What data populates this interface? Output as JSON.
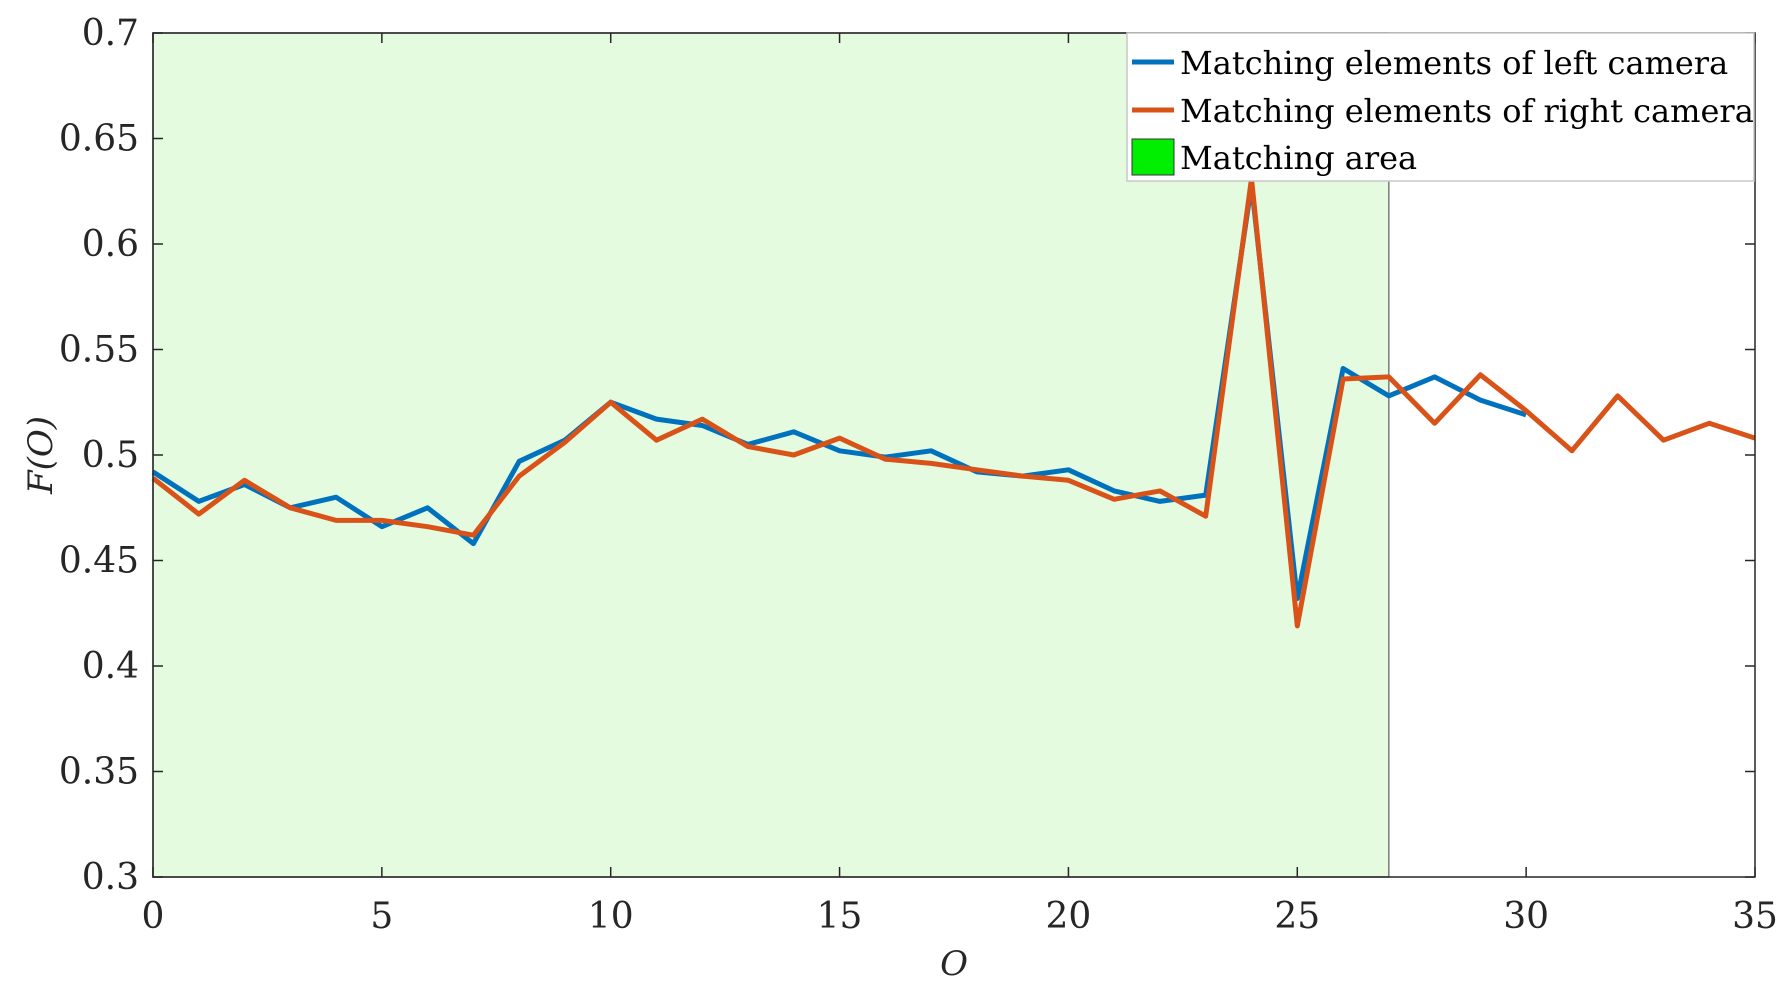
{
  "chart_data": {
    "type": "line",
    "title": "",
    "xlabel": "O",
    "ylabel": "F(O)",
    "xlim": [
      0,
      35
    ],
    "ylim": [
      0.3,
      0.7
    ],
    "x_ticks": [
      "0",
      "5",
      "10",
      "15",
      "20",
      "25",
      "30",
      "35"
    ],
    "y_ticks": [
      "0.3",
      "0.35",
      "0.4",
      "0.45",
      "0.5",
      "0.55",
      "0.6",
      "0.65",
      "0.7"
    ],
    "grid": false,
    "legend_position": "top-right",
    "series": [
      {
        "name": "Matching elements of left camera",
        "color": "#0072BD",
        "x": [
          0,
          1,
          2,
          3,
          4,
          5,
          6,
          7,
          8,
          9,
          10,
          11,
          12,
          13,
          14,
          15,
          16,
          17,
          18,
          19,
          20,
          21,
          22,
          23,
          24,
          25,
          26,
          27,
          28,
          29,
          30
        ],
        "y": [
          0.492,
          0.478,
          0.486,
          0.475,
          0.48,
          0.466,
          0.475,
          0.458,
          0.497,
          0.507,
          0.525,
          0.517,
          0.514,
          0.505,
          0.511,
          0.502,
          0.499,
          0.502,
          0.492,
          0.49,
          0.493,
          0.483,
          0.478,
          0.481,
          0.628,
          0.432,
          0.541,
          0.528,
          0.537,
          0.526,
          0.519
        ]
      },
      {
        "name": "Matching elements of right camera",
        "color": "#D95319",
        "x": [
          0,
          1,
          2,
          3,
          4,
          5,
          6,
          7,
          8,
          9,
          10,
          11,
          12,
          13,
          14,
          15,
          16,
          17,
          18,
          19,
          20,
          21,
          22,
          23,
          24,
          25,
          26,
          27,
          28,
          29,
          30,
          31,
          32,
          33,
          34,
          35
        ],
        "y": [
          0.489,
          0.472,
          0.488,
          0.475,
          0.469,
          0.469,
          0.466,
          0.462,
          0.49,
          0.506,
          0.525,
          0.507,
          0.517,
          0.504,
          0.5,
          0.508,
          0.498,
          0.496,
          0.493,
          0.49,
          0.488,
          0.479,
          0.483,
          0.471,
          0.631,
          0.419,
          0.536,
          0.537,
          0.515,
          0.538,
          0.521,
          0.502,
          0.528,
          0.507,
          0.515,
          0.508
        ]
      }
    ],
    "shaded_region": {
      "name": "Matching area",
      "color": "#00EE00",
      "fill_color": "#E5FBE0",
      "x_range": [
        0,
        27
      ]
    }
  }
}
